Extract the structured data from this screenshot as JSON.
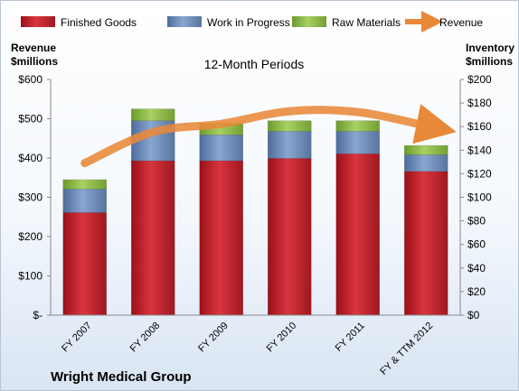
{
  "chart_data": {
    "type": "bar",
    "stacked": true,
    "title": "12-Month Periods",
    "company": "Wright Medical Group",
    "categories": [
      "FY 2007",
      "FY 2008",
      "FY 2009",
      "FY 2010",
      "FY 2011",
      "FY & TTM 2012"
    ],
    "series": [
      {
        "name": "Finished Goods",
        "axis": "right",
        "color": "#c8202a",
        "values": [
          87,
          131,
          131,
          133,
          137,
          122
        ]
      },
      {
        "name": "Work in Progress",
        "axis": "right",
        "color": "#6f8fbf",
        "values": [
          20,
          34,
          22,
          23,
          19,
          14
        ]
      },
      {
        "name": "Raw Materials",
        "axis": "right",
        "color": "#8fbf45",
        "values": [
          8,
          10,
          10,
          9,
          9,
          8
        ]
      },
      {
        "name": "Revenue",
        "axis": "left",
        "type": "line",
        "color": "#e8893a",
        "values": [
          387,
          466,
          487,
          519,
          517,
          482
        ]
      }
    ],
    "left_axis": {
      "label_line1": "Revenue",
      "label_line2": "$millions",
      "ylim": [
        0,
        600
      ],
      "ticks": [
        0,
        100,
        200,
        300,
        400,
        500,
        600
      ],
      "tick_labels": [
        "$-",
        "$100",
        "$200",
        "$300",
        "$400",
        "$500",
        "$600"
      ]
    },
    "right_axis": {
      "label_line1": "Inventory",
      "label_line2": "$millions",
      "ylim": [
        0,
        200
      ],
      "ticks": [
        0,
        20,
        40,
        60,
        80,
        100,
        120,
        140,
        160,
        180,
        200
      ],
      "tick_labels": [
        "$0",
        "$20",
        "$40",
        "$60",
        "$80",
        "$100",
        "$120",
        "$140",
        "$160",
        "$180",
        "$200"
      ]
    },
    "legend": {
      "position": "top"
    },
    "grid": false
  }
}
